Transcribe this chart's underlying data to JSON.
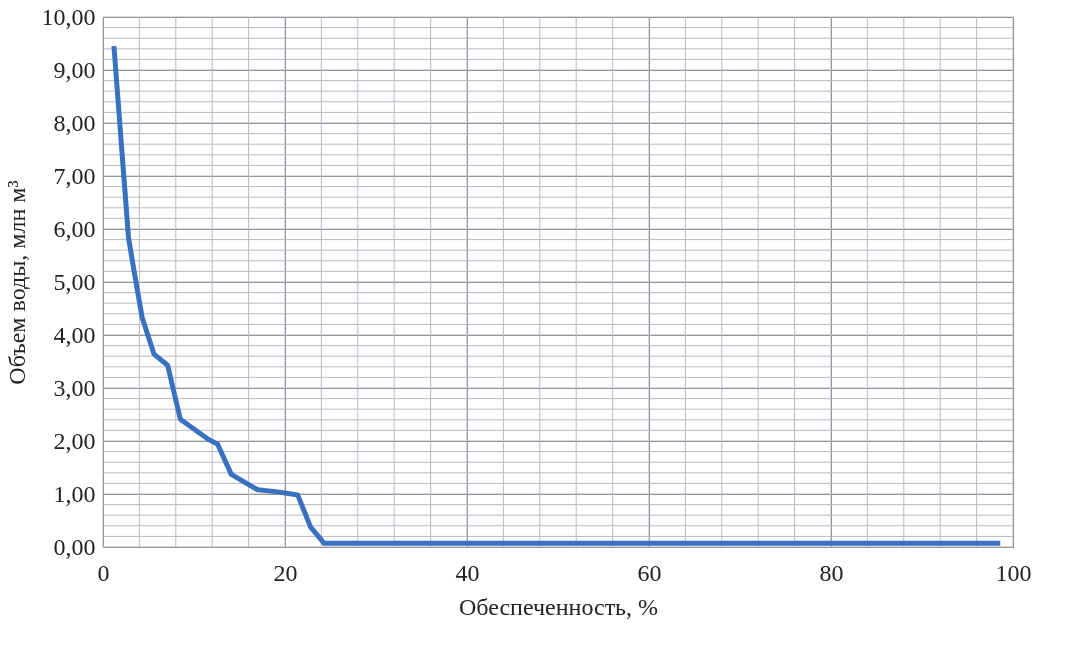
{
  "chart_data": {
    "type": "line",
    "xlabel": "Обеспеченность, %",
    "ylabel": "Объем воды, млн м³",
    "x": [
      1.2,
      2.8,
      3.4,
      4.3,
      5.6,
      7.1,
      8.5,
      11.6,
      12.6,
      14.1,
      17,
      19.2,
      21.4,
      22.8,
      24.3,
      98.6
    ],
    "series": [
      {
        "color": "#3a70c0",
        "values": [
          9.45,
          5.84,
          5.22,
          4.33,
          3.64,
          3.43,
          2.41,
          2.03,
          1.94,
          1.37,
          1.08,
          1.04,
          0.98,
          0.38,
          0.07,
          0.07
        ]
      }
    ],
    "xlim": [
      0,
      100
    ],
    "xticks": [
      0,
      20,
      40,
      60,
      80,
      100
    ],
    "ylim": [
      0,
      10
    ],
    "yticks": [
      {
        "value": 0,
        "label": "0,00"
      },
      {
        "value": 1,
        "label": "1,00"
      },
      {
        "value": 2,
        "label": "2,00"
      },
      {
        "value": 3,
        "label": "3,00"
      },
      {
        "value": 4,
        "label": "4,00"
      },
      {
        "value": 5,
        "label": "5,00"
      },
      {
        "value": 6,
        "label": "6,00"
      },
      {
        "value": 7,
        "label": "7,00"
      },
      {
        "value": 8,
        "label": "8,00"
      },
      {
        "value": 9,
        "label": "9,00"
      },
      {
        "value": 10,
        "label": "10,00"
      }
    ],
    "grid": true,
    "legend": false,
    "marker": "none",
    "line_style": "solid"
  }
}
